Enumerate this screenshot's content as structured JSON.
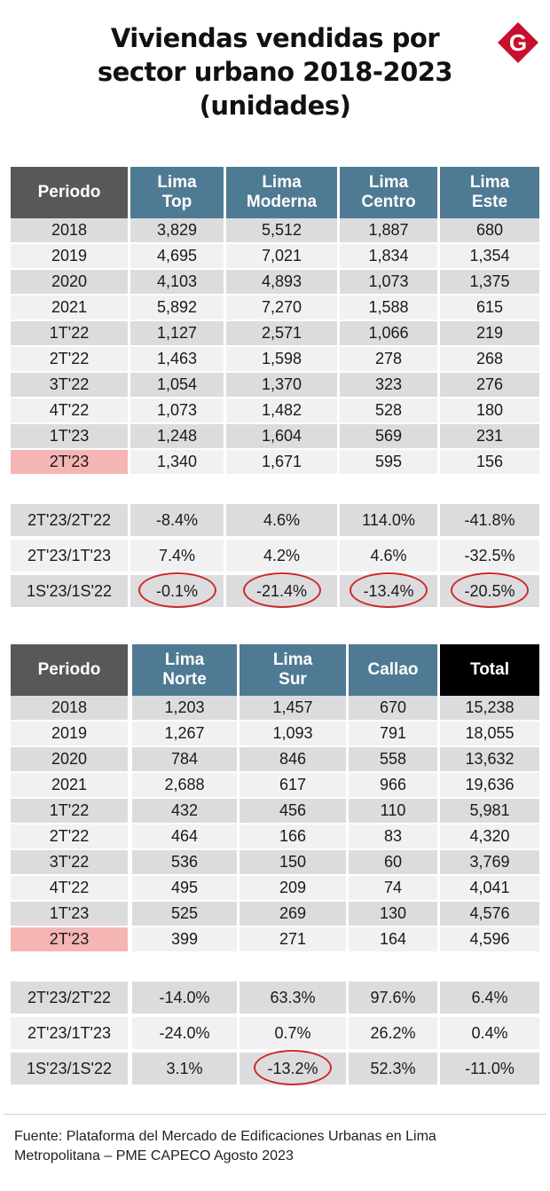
{
  "title": {
    "line1": "Viviendas vendidas por",
    "line2": "sector urbano 2018-2023",
    "line3": "(unidades)"
  },
  "logo": {
    "letter": "G",
    "color": "#c8102e",
    "icon": "brand-logo-icon"
  },
  "colors": {
    "header_dark": "#585858",
    "header_blue": "#4f7a93",
    "header_total": "#000000",
    "highlight": "#f5b5b5",
    "ring": "#cc2a2a"
  },
  "chart_data": [
    {
      "type": "table",
      "columns": [
        {
          "lines": [
            "Periodo"
          ]
        },
        {
          "lines": [
            "Lima",
            "Top"
          ]
        },
        {
          "lines": [
            "Lima",
            "Moderna"
          ]
        },
        {
          "lines": [
            "Lima",
            "Centro"
          ]
        },
        {
          "lines": [
            "Lima",
            "Este"
          ]
        }
      ],
      "rows": [
        [
          "2018",
          "3,829",
          "5,512",
          "1,887",
          "680"
        ],
        [
          "2019",
          "4,695",
          "7,021",
          "1,834",
          "1,354"
        ],
        [
          "2020",
          "4,103",
          "4,893",
          "1,073",
          "1,375"
        ],
        [
          "2021",
          "5,892",
          "7,270",
          "1,588",
          "615"
        ],
        [
          "1T'22",
          "1,127",
          "2,571",
          "1,066",
          "219"
        ],
        [
          "2T'22",
          "1,463",
          "1,598",
          "278",
          "268"
        ],
        [
          "3T'22",
          "1,054",
          "1,370",
          "323",
          "276"
        ],
        [
          "4T'22",
          "1,073",
          "1,482",
          "528",
          "180"
        ],
        [
          "1T'23",
          "1,248",
          "1,604",
          "569",
          "231"
        ],
        [
          "2T'23",
          "1,340",
          "1,671",
          "595",
          "156"
        ]
      ],
      "highlighted_period": "2T'23",
      "changes": [
        [
          "2T'23/2T'22",
          "-8.4%",
          "4.6%",
          "114.0%",
          "-41.8%"
        ],
        [
          "2T'23/1T'23",
          "7.4%",
          "4.2%",
          "4.6%",
          "-32.5%"
        ],
        [
          "1S'23/1S'22",
          "-0.1%",
          "-21.4%",
          "-13.4%",
          "-20.5%"
        ]
      ],
      "circled": [
        [
          2,
          1
        ],
        [
          2,
          2
        ],
        [
          2,
          3
        ],
        [
          2,
          4
        ]
      ]
    },
    {
      "type": "table",
      "columns": [
        {
          "lines": [
            "Periodo"
          ]
        },
        {
          "lines": [
            "Lima",
            "Norte"
          ]
        },
        {
          "lines": [
            "Lima",
            "Sur"
          ]
        },
        {
          "lines": [
            "Callao"
          ]
        },
        {
          "lines": [
            "Total"
          ]
        }
      ],
      "rows": [
        [
          "2018",
          "1,203",
          "1,457",
          "670",
          "15,238"
        ],
        [
          "2019",
          "1,267",
          "1,093",
          "791",
          "18,055"
        ],
        [
          "2020",
          "784",
          "846",
          "558",
          "13,632"
        ],
        [
          "2021",
          "2,688",
          "617",
          "966",
          "19,636"
        ],
        [
          "1T'22",
          "432",
          "456",
          "110",
          "5,981"
        ],
        [
          "2T'22",
          "464",
          "166",
          "83",
          "4,320"
        ],
        [
          "3T'22",
          "536",
          "150",
          "60",
          "3,769"
        ],
        [
          "4T'22",
          "495",
          "209",
          "74",
          "4,041"
        ],
        [
          "1T'23",
          "525",
          "269",
          "130",
          "4,576"
        ],
        [
          "2T'23",
          "399",
          "271",
          "164",
          "4,596"
        ]
      ],
      "highlighted_period": "2T'23",
      "changes": [
        [
          "2T'23/2T'22",
          "-14.0%",
          "63.3%",
          "97.6%",
          "6.4%"
        ],
        [
          "2T'23/1T'23",
          "-24.0%",
          "0.7%",
          "26.2%",
          "0.4%"
        ],
        [
          "1S'23/1S'22",
          "3.1%",
          "-13.2%",
          "52.3%",
          "-11.0%"
        ]
      ],
      "circled": [
        [
          2,
          2
        ]
      ]
    }
  ],
  "source": {
    "line1": "Fuente: Plataforma del Mercado de Edificaciones Urbanas en Lima",
    "line2": "Metropolitana – PME CAPECO Agosto 2023"
  }
}
